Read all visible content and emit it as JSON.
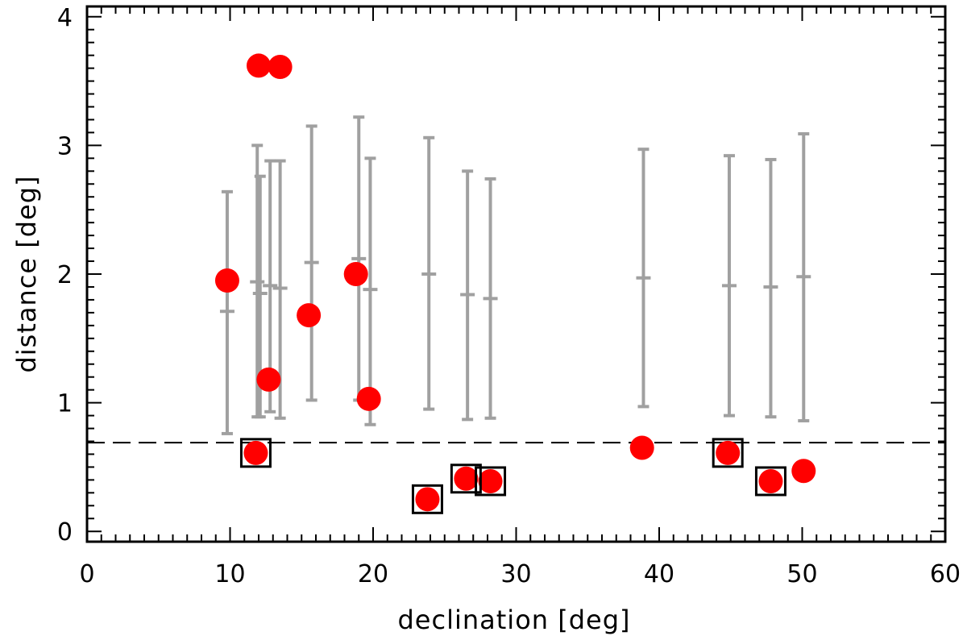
{
  "chart_data": {
    "type": "scatter",
    "title": "",
    "xlabel": "declination [deg]",
    "ylabel": "distance [deg]",
    "xlim": [
      0,
      60
    ],
    "ylim": [
      -0.08,
      4.08
    ],
    "xticks": [
      0,
      10,
      20,
      30,
      40,
      50,
      60
    ],
    "yticks": [
      0,
      1,
      2,
      3,
      4
    ],
    "xtick_labels": [
      "0",
      "10",
      "20",
      "30",
      "40",
      "50",
      "60"
    ],
    "ytick_labels": [
      "0",
      "1",
      "2",
      "3",
      "4"
    ],
    "threshold_line": {
      "y": 0.69,
      "style": "dashed",
      "color": "#000000"
    },
    "colors": {
      "points": "#ff0000",
      "errorbars": "#a0a0a0",
      "markers": "#000000"
    },
    "series": [
      {
        "name": "points",
        "x": [
          9.8,
          12.0,
          13.5,
          12.7,
          15.5,
          18.8,
          19.7,
          11.8,
          23.8,
          26.5,
          28.2,
          38.8,
          44.8,
          47.8,
          50.1
        ],
        "y": [
          1.95,
          3.62,
          3.61,
          1.18,
          1.68,
          2.0,
          1.03,
          0.61,
          0.25,
          0.41,
          0.39,
          0.65,
          0.61,
          0.39,
          0.47
        ]
      },
      {
        "name": "error_bars",
        "x": [
          9.8,
          11.9,
          12.1,
          12.8,
          13.5,
          15.7,
          19.0,
          19.8,
          23.9,
          26.6,
          28.2,
          38.9,
          44.9,
          47.8,
          50.1
        ],
        "center": [
          1.71,
          1.94,
          1.85,
          1.91,
          1.89,
          2.09,
          2.12,
          1.88,
          2.0,
          1.84,
          1.81,
          1.97,
          1.91,
          1.9,
          1.98
        ],
        "low": [
          0.76,
          0.89,
          0.89,
          0.93,
          0.88,
          1.02,
          1.02,
          0.83,
          0.95,
          0.87,
          0.88,
          0.97,
          0.9,
          0.89,
          0.86
        ],
        "high": [
          2.64,
          3.0,
          2.76,
          2.88,
          2.88,
          3.15,
          3.22,
          2.9,
          3.06,
          2.8,
          2.74,
          2.97,
          2.92,
          2.89,
          3.09
        ]
      },
      {
        "name": "boxed",
        "x": [
          11.8,
          23.8,
          26.5,
          28.2,
          44.8,
          47.8
        ],
        "y": [
          0.61,
          0.25,
          0.41,
          0.39,
          0.61,
          0.39
        ]
      }
    ]
  }
}
